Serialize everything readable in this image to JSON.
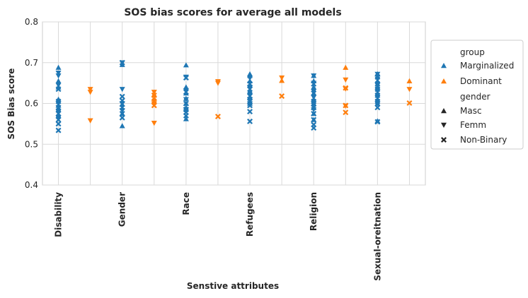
{
  "chart_data": {
    "type": "scatter",
    "title": "SOS bias scores for average all models",
    "xlabel": "Senstive attributes",
    "ylabel": "SOS Bias score",
    "ylim": [
      0.4,
      0.8
    ],
    "yticks": [
      "0.4",
      "0.5",
      "0.6",
      "0.7",
      "0.8"
    ],
    "grid": true,
    "legend_position": "right-outside",
    "slots": [
      "Disability",
      "",
      "Gender",
      "",
      "Race",
      "",
      "Refugees",
      "",
      "Religion",
      "",
      "Sexual-oreitnation",
      ""
    ],
    "legend": {
      "group_title": "group",
      "groups": [
        {
          "label": "Marginalized",
          "color": "#1f77b4"
        },
        {
          "label": "Dominant",
          "color": "#ff7f0e"
        }
      ],
      "gender_title": "gender",
      "genders": [
        {
          "label": "Masc",
          "marker": "triangle-up"
        },
        {
          "label": "Femm",
          "marker": "triangle-down"
        },
        {
          "label": "Non-Binary",
          "marker": "x"
        }
      ]
    },
    "series": [
      {
        "slot": 0,
        "group": "Marginalized",
        "gender": "Masc",
        "values": [
          0.688,
          0.655,
          0.64,
          0.61,
          0.595,
          0.585,
          0.57
        ]
      },
      {
        "slot": 0,
        "group": "Marginalized",
        "gender": "Femm",
        "values": [
          0.675,
          0.668,
          0.645,
          0.6,
          0.58,
          0.565
        ]
      },
      {
        "slot": 0,
        "group": "Marginalized",
        "gender": "Non-Binary",
        "values": [
          0.635,
          0.605,
          0.59,
          0.575,
          0.56,
          0.55,
          0.534
        ]
      },
      {
        "slot": 1,
        "group": "Dominant",
        "gender": "Femm",
        "values": [
          0.635,
          0.628,
          0.558
        ]
      },
      {
        "slot": 2,
        "group": "Marginalized",
        "gender": "Masc",
        "values": [
          0.695,
          0.598,
          0.575,
          0.545
        ]
      },
      {
        "slot": 2,
        "group": "Marginalized",
        "gender": "Femm",
        "values": [
          0.7,
          0.635,
          0.6,
          0.583
        ]
      },
      {
        "slot": 2,
        "group": "Marginalized",
        "gender": "Non-Binary",
        "values": [
          0.7,
          0.617,
          0.607,
          0.59,
          0.575,
          0.565
        ]
      },
      {
        "slot": 3,
        "group": "Dominant",
        "gender": "Masc",
        "values": [
          0.622,
          0.612
        ]
      },
      {
        "slot": 3,
        "group": "Dominant",
        "gender": "Femm",
        "values": [
          0.628,
          0.6,
          0.552
        ]
      },
      {
        "slot": 3,
        "group": "Dominant",
        "gender": "Non-Binary",
        "values": [
          0.62,
          0.605,
          0.595
        ]
      },
      {
        "slot": 4,
        "group": "Marginalized",
        "gender": "Masc",
        "values": [
          0.694,
          0.64,
          0.625,
          0.612,
          0.6,
          0.59,
          0.562
        ]
      },
      {
        "slot": 4,
        "group": "Marginalized",
        "gender": "Femm",
        "values": [
          0.665,
          0.632,
          0.61,
          0.585
        ]
      },
      {
        "slot": 4,
        "group": "Marginalized",
        "gender": "Non-Binary",
        "values": [
          0.663,
          0.628,
          0.6,
          0.585,
          0.578,
          0.57
        ]
      },
      {
        "slot": 5,
        "group": "Dominant",
        "gender": "Femm",
        "values": [
          0.654,
          0.65
        ]
      },
      {
        "slot": 5,
        "group": "Dominant",
        "gender": "Non-Binary",
        "values": [
          0.568
        ]
      },
      {
        "slot": 6,
        "group": "Marginalized",
        "gender": "Masc",
        "values": [
          0.672,
          0.668,
          0.655,
          0.645,
          0.63,
          0.615,
          0.6
        ]
      },
      {
        "slot": 6,
        "group": "Marginalized",
        "gender": "Femm",
        "values": [
          0.662,
          0.64,
          0.62,
          0.61,
          0.6
        ]
      },
      {
        "slot": 6,
        "group": "Marginalized",
        "gender": "Non-Binary",
        "values": [
          0.648,
          0.635,
          0.618,
          0.605,
          0.595,
          0.58,
          0.556
        ]
      },
      {
        "slot": 7,
        "group": "Dominant",
        "gender": "Masc",
        "values": [
          0.656
        ]
      },
      {
        "slot": 7,
        "group": "Dominant",
        "gender": "Femm",
        "values": [
          0.663
        ]
      },
      {
        "slot": 7,
        "group": "Dominant",
        "gender": "Non-Binary",
        "values": [
          0.618
        ]
      },
      {
        "slot": 8,
        "group": "Marginalized",
        "gender": "Masc",
        "values": [
          0.668,
          0.655,
          0.64,
          0.625,
          0.61,
          0.6,
          0.59,
          0.575,
          0.56
        ]
      },
      {
        "slot": 8,
        "group": "Marginalized",
        "gender": "Femm",
        "values": [
          0.668,
          0.65,
          0.63,
          0.615,
          0.6,
          0.585
        ]
      },
      {
        "slot": 8,
        "group": "Marginalized",
        "gender": "Non-Binary",
        "values": [
          0.648,
          0.625,
          0.605,
          0.59,
          0.575,
          0.56,
          0.548,
          0.54
        ]
      },
      {
        "slot": 9,
        "group": "Dominant",
        "gender": "Masc",
        "values": [
          0.688
        ]
      },
      {
        "slot": 9,
        "group": "Dominant",
        "gender": "Femm",
        "values": [
          0.658,
          0.636,
          0.594
        ]
      },
      {
        "slot": 9,
        "group": "Dominant",
        "gender": "Non-Binary",
        "values": [
          0.638,
          0.595,
          0.578
        ]
      },
      {
        "slot": 10,
        "group": "Marginalized",
        "gender": "Masc",
        "values": [
          0.672,
          0.655,
          0.64,
          0.625,
          0.61,
          0.6,
          0.557
        ]
      },
      {
        "slot": 10,
        "group": "Marginalized",
        "gender": "Femm",
        "values": [
          0.672,
          0.66,
          0.645,
          0.63,
          0.615,
          0.6
        ]
      },
      {
        "slot": 10,
        "group": "Marginalized",
        "gender": "Non-Binary",
        "values": [
          0.665,
          0.648,
          0.635,
          0.62,
          0.605,
          0.59,
          0.555
        ]
      },
      {
        "slot": 11,
        "group": "Dominant",
        "gender": "Masc",
        "values": [
          0.655
        ]
      },
      {
        "slot": 11,
        "group": "Dominant",
        "gender": "Femm",
        "values": [
          0.635
        ]
      },
      {
        "slot": 11,
        "group": "Dominant",
        "gender": "Non-Binary",
        "values": [
          0.601
        ]
      }
    ]
  }
}
